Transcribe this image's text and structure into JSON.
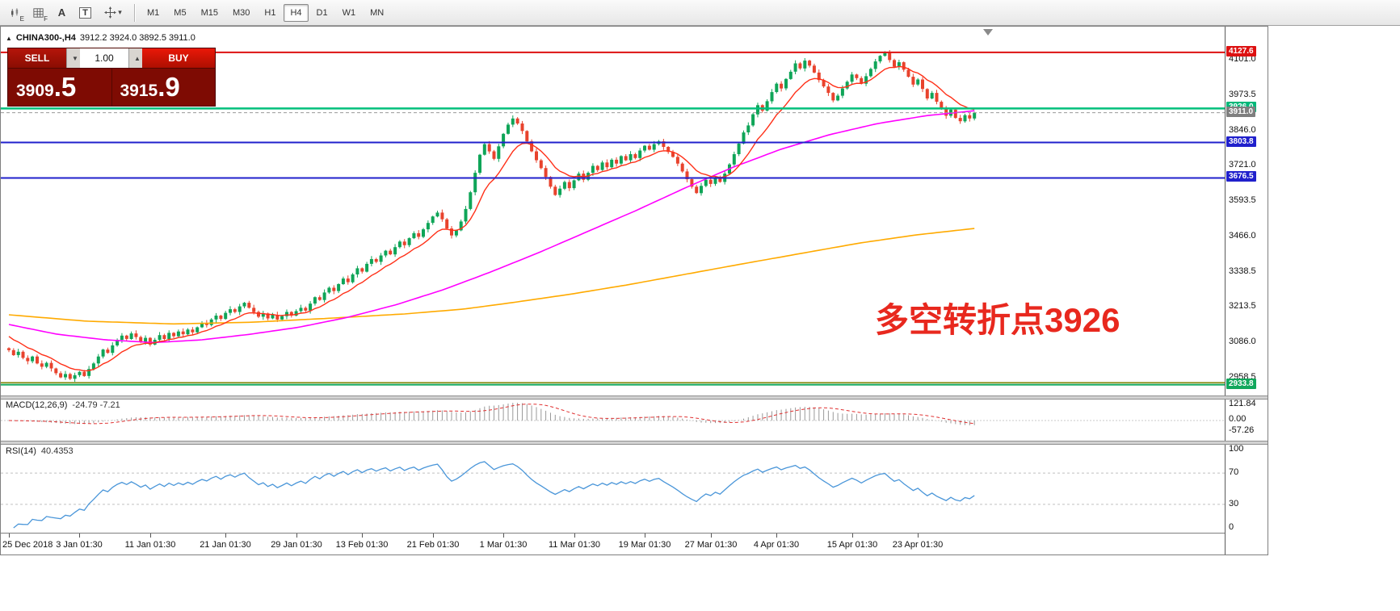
{
  "toolbar": {
    "tools": [
      {
        "name": "chart-edit",
        "sub": "E"
      },
      {
        "name": "indicator-grid",
        "sub": "F"
      },
      {
        "name": "text-tool",
        "glyph": "A"
      },
      {
        "name": "label-tool",
        "glyph": "T"
      },
      {
        "name": "crosshair-tool",
        "sub": ""
      }
    ],
    "caret": "▾",
    "timeframes": [
      "M1",
      "M5",
      "M15",
      "M30",
      "H1",
      "H4",
      "D1",
      "W1",
      "MN"
    ],
    "active_timeframe": "H4"
  },
  "chart_header": {
    "marker": "▲",
    "symbol": "CHINA300-,H4",
    "ohlc": "3912.2 3924.0 3892.5 3911.0"
  },
  "trade_panel": {
    "sell_label": "SELL",
    "buy_label": "BUY",
    "volume": "1.00",
    "caret_down": "▼",
    "caret_up": "▲",
    "sell_price": {
      "main": "3909",
      "pips": ".5"
    },
    "buy_price": {
      "main": "3915",
      "pips": ".9"
    },
    "colors": {
      "panel_bg": "#7e0b03",
      "sell": "#a51105",
      "buy": "#e01505"
    }
  },
  "annotation": {
    "text": "多空转折点3926",
    "color": "#e8281e"
  },
  "macd_panel": {
    "title": "MACD(12,26,9)",
    "values": "-24.79 -7.21",
    "axis": [
      "121.84",
      "0.00",
      "-57.26"
    ]
  },
  "rsi_panel": {
    "title": "RSI(14)",
    "value": "40.4353",
    "axis": [
      "100",
      "70",
      "30",
      "0"
    ],
    "dashed_levels": [
      70,
      30
    ]
  },
  "chart_data": {
    "type": "candlestick",
    "symbol": "CHINA300-",
    "timeframe": "H4",
    "ohlc_current": {
      "open": 3912.2,
      "high": 3924.0,
      "low": 3892.5,
      "close": 3911.0
    },
    "price_range": {
      "min": 2895,
      "max": 4220
    },
    "price_ticks": [
      {
        "label": "4101.0",
        "price": 4101.0
      },
      {
        "label": "3973.5",
        "price": 3973.5
      },
      {
        "label": "3846.0",
        "price": 3846.0
      },
      {
        "label": "3721.0",
        "price": 3721.0
      },
      {
        "label": "3593.5",
        "price": 3593.5
      },
      {
        "label": "3466.0",
        "price": 3466.0
      },
      {
        "label": "3338.5",
        "price": 3338.5
      },
      {
        "label": "3213.5",
        "price": 3213.5
      },
      {
        "label": "3086.0",
        "price": 3086.0
      },
      {
        "label": "2958.5",
        "price": 2958.5
      }
    ],
    "badges": [
      {
        "label": "4127.6",
        "price": 4127.6,
        "bg": "#dd1111"
      },
      {
        "label": "3926.0",
        "price": 3926.0,
        "bg": "#00b879"
      },
      {
        "label": "3911.0",
        "price": 3911.0,
        "bg": "#7f7f7f"
      },
      {
        "label": "3803.8",
        "price": 3803.8,
        "bg": "#2020cc"
      },
      {
        "label": "3676.5",
        "price": 3676.5,
        "bg": "#2020cc"
      },
      {
        "label": "2933.8",
        "price": 2933.8,
        "bg": "#11a75c"
      }
    ],
    "levels": [
      {
        "price": 4127.6,
        "color": "#dd1111",
        "w": 2,
        "dash": ""
      },
      {
        "price": 3926.0,
        "color": "#00bf7c",
        "w": 2.5,
        "dash": ""
      },
      {
        "price": 3911.0,
        "color": "#999999",
        "w": 1,
        "dash": "4 3"
      },
      {
        "price": 3803.8,
        "color": "#2020cc",
        "w": 2,
        "dash": ""
      },
      {
        "price": 3676.5,
        "color": "#2020cc",
        "w": 2,
        "dash": ""
      },
      {
        "price": 2941.0,
        "color": "#808000",
        "w": 1.5,
        "dash": ""
      },
      {
        "price": 2933.8,
        "color": "#11a75c",
        "w": 2,
        "dash": ""
      }
    ],
    "open_first": 3065,
    "closes": [
      3058,
      3040,
      3052,
      3030,
      3018,
      3035,
      3010,
      2998,
      3012,
      2992,
      2975,
      2960,
      2972,
      2955,
      2968,
      2980,
      2965,
      2990,
      3010,
      3035,
      3060,
      3048,
      3075,
      3095,
      3110,
      3098,
      3118,
      3105,
      3088,
      3102,
      3078,
      3095,
      3112,
      3098,
      3120,
      3108,
      3125,
      3115,
      3132,
      3122,
      3140,
      3155,
      3148,
      3168,
      3182,
      3170,
      3192,
      3205,
      3195,
      3215,
      3228,
      3210,
      3195,
      3178,
      3190,
      3172,
      3185,
      3168,
      3180,
      3195,
      3182,
      3198,
      3210,
      3200,
      3225,
      3248,
      3238,
      3265,
      3282,
      3270,
      3295,
      3315,
      3302,
      3330,
      3352,
      3340,
      3368,
      3385,
      3375,
      3398,
      3415,
      3402,
      3428,
      3448,
      3435,
      3460,
      3478,
      3465,
      3492,
      3515,
      3538,
      3552,
      3528,
      3495,
      3470,
      3488,
      3520,
      3565,
      3625,
      3695,
      3760,
      3798,
      3772,
      3745,
      3790,
      3835,
      3868,
      3890,
      3872,
      3845,
      3808,
      3772,
      3740,
      3712,
      3680,
      3645,
      3615,
      3638,
      3662,
      3640,
      3668,
      3692,
      3670,
      3695,
      3720,
      3705,
      3732,
      3715,
      3742,
      3728,
      3755,
      3740,
      3762,
      3748,
      3775,
      3792,
      3778,
      3798,
      3808,
      3788,
      3770,
      3752,
      3728,
      3700,
      3672,
      3645,
      3622,
      3648,
      3670,
      3655,
      3678,
      3662,
      3692,
      3725,
      3762,
      3800,
      3840,
      3865,
      3905,
      3938,
      3918,
      3952,
      3985,
      4015,
      3998,
      4032,
      4058,
      4088,
      4070,
      4098,
      4080,
      4055,
      4028,
      4005,
      3982,
      3955,
      3972,
      3998,
      4022,
      4048,
      4035,
      4015,
      4042,
      4068,
      4095,
      4115,
      4125,
      4100,
      4076,
      4092,
      4065,
      4040,
      4012,
      4030,
      3996,
      3962,
      3982,
      3950,
      3926,
      3900,
      3922,
      3892,
      3880,
      3902,
      3890,
      3911
    ],
    "ma_fast": {
      "name": "fast-ma",
      "color": "#ff3018",
      "start": 3118,
      "alpha": 0.18
    },
    "ma_mid": {
      "name": "mid-ma",
      "color": "#ff00ff",
      "anchors": [
        [
          0,
          3150
        ],
        [
          0.05,
          3115
        ],
        [
          0.1,
          3095
        ],
        [
          0.15,
          3085
        ],
        [
          0.2,
          3095
        ],
        [
          0.25,
          3115
        ],
        [
          0.3,
          3140
        ],
        [
          0.35,
          3175
        ],
        [
          0.4,
          3220
        ],
        [
          0.45,
          3275
        ],
        [
          0.5,
          3340
        ],
        [
          0.55,
          3410
        ],
        [
          0.6,
          3485
        ],
        [
          0.65,
          3560
        ],
        [
          0.7,
          3640
        ],
        [
          0.75,
          3715
        ],
        [
          0.8,
          3780
        ],
        [
          0.85,
          3832
        ],
        [
          0.9,
          3872
        ],
        [
          0.95,
          3900
        ],
        [
          1,
          3918
        ]
      ]
    },
    "ma_slow": {
      "name": "slow-ma",
      "color": "#ffaa00",
      "anchors": [
        [
          0,
          3185
        ],
        [
          0.08,
          3162
        ],
        [
          0.17,
          3152
        ],
        [
          0.25,
          3158
        ],
        [
          0.33,
          3172
        ],
        [
          0.41,
          3188
        ],
        [
          0.47,
          3205
        ],
        [
          0.52,
          3228
        ],
        [
          0.58,
          3258
        ],
        [
          0.64,
          3292
        ],
        [
          0.7,
          3330
        ],
        [
          0.76,
          3368
        ],
        [
          0.82,
          3405
        ],
        [
          0.88,
          3442
        ],
        [
          0.94,
          3472
        ],
        [
          1,
          3495
        ]
      ]
    },
    "colors": {
      "bull": "#0fa558",
      "bear": "#e8432d",
      "macd_hist": "#9a9a9a",
      "macd_signal": "#e03030",
      "rsi": "#4a96d9"
    },
    "macd": {
      "params": "12,26,9",
      "value": -24.79,
      "signal": -7.21,
      "axis_max": 121.84,
      "axis_min": -57.26
    },
    "rsi": {
      "period": 14,
      "value": 40.4353,
      "range": [
        0,
        100
      ],
      "levels": [
        70,
        30
      ]
    },
    "time_labels": [
      {
        "label": "25 Dec 2018",
        "bar": 0
      },
      {
        "label": "3 Jan 01:30",
        "bar": 15
      },
      {
        "label": "11 Jan 01:30",
        "bar": 30
      },
      {
        "label": "21 Jan 01:30",
        "bar": 46
      },
      {
        "label": "29 Jan 01:30",
        "bar": 61
      },
      {
        "label": "13 Feb 01:30",
        "bar": 75
      },
      {
        "label": "21 Feb 01:30",
        "bar": 90
      },
      {
        "label": "1 Mar 01:30",
        "bar": 105
      },
      {
        "label": "11 Mar 01:30",
        "bar": 120
      },
      {
        "label": "19 Mar 01:30",
        "bar": 135
      },
      {
        "label": "27 Mar 01:30",
        "bar": 149
      },
      {
        "label": "4 Apr 01:30",
        "bar": 163
      },
      {
        "label": "15 Apr 01:30",
        "bar": 179
      },
      {
        "label": "23 Apr 01:30",
        "bar": 193
      }
    ]
  }
}
